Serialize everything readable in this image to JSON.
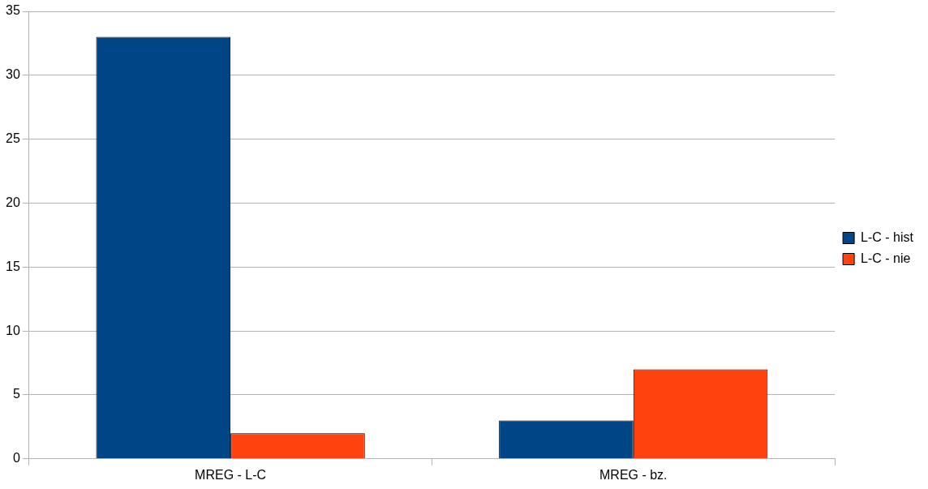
{
  "chart_data": {
    "type": "bar",
    "categories": [
      "MREG - L-C",
      "MREG - bz."
    ],
    "series": [
      {
        "name": "L-C - hist",
        "color": "#004586",
        "values": [
          33,
          3
        ]
      },
      {
        "name": "L-C - nie",
        "color": "#ff420e",
        "values": [
          2,
          7
        ]
      }
    ],
    "ylim": [
      0,
      35
    ],
    "yticks": [
      0,
      5,
      10,
      15,
      20,
      25,
      30,
      35
    ],
    "grid": "y",
    "legend": "right"
  }
}
